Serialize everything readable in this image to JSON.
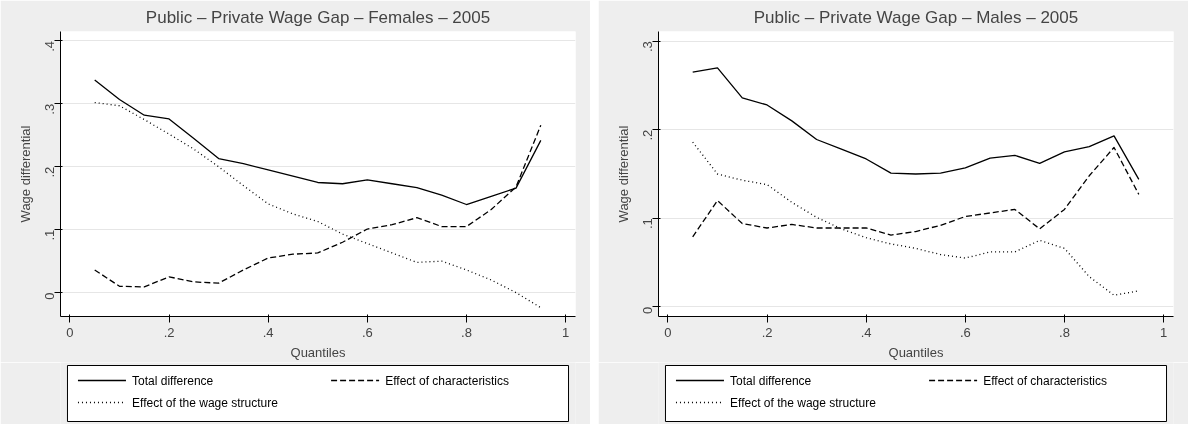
{
  "chart_data": [
    {
      "type": "line",
      "title": "Public – Private Wage Gap – Females – 2005",
      "xlabel": "Quantiles",
      "ylabel": "Wage differential",
      "x": [
        0.05,
        0.1,
        0.15,
        0.2,
        0.25,
        0.3,
        0.35,
        0.4,
        0.45,
        0.5,
        0.55,
        0.6,
        0.65,
        0.7,
        0.75,
        0.8,
        0.85,
        0.9,
        0.95
      ],
      "xlim": [
        -0.019,
        1.02
      ],
      "xticks": [
        0,
        {
          "value": 0.2,
          "label": ".2"
        },
        {
          "value": 0.4,
          "label": ".4"
        },
        {
          "value": 0.6,
          "label": ".6"
        },
        {
          "value": 0.8,
          "label": ".8"
        },
        1
      ],
      "ylim": [
        -0.038,
        0.415
      ],
      "yticks": [
        0,
        {
          "value": 0.1,
          "label": ".1"
        },
        {
          "value": 0.2,
          "label": ".2"
        },
        {
          "value": 0.3,
          "label": ".3"
        },
        {
          "value": 0.4,
          "label": ".4"
        }
      ],
      "grid": "y",
      "legend": "bottom",
      "series": [
        {
          "name": "Total difference",
          "color": "#000000",
          "line_style": "solid",
          "values": [
            0.338,
            0.307,
            0.282,
            0.276,
            0.245,
            0.213,
            0.205,
            0.195,
            0.185,
            0.175,
            0.173,
            0.179,
            0.173,
            0.167,
            0.155,
            0.14,
            0.153,
            0.166,
            0.242
          ]
        },
        {
          "name": "Effect of characteristics",
          "color": "#000000",
          "line_style": "dashed",
          "values": [
            0.036,
            0.01,
            0.009,
            0.025,
            0.017,
            0.015,
            0.036,
            0.055,
            0.061,
            0.063,
            0.08,
            0.101,
            0.108,
            0.119,
            0.105,
            0.105,
            0.132,
            0.168,
            0.266
          ]
        },
        {
          "name": "Effect of the wage structure",
          "color": "#000000",
          "line_style": "dotted",
          "values": [
            0.302,
            0.297,
            0.275,
            0.252,
            0.228,
            0.2,
            0.17,
            0.141,
            0.125,
            0.113,
            0.093,
            0.078,
            0.063,
            0.048,
            0.05,
            0.036,
            0.02,
            0.0,
            -0.024
          ]
        }
      ]
    },
    {
      "type": "line",
      "title": "Public – Private Wage Gap – Males – 2005",
      "xlabel": "Quantiles",
      "ylabel": "Wage differential",
      "x": [
        0.05,
        0.1,
        0.15,
        0.2,
        0.25,
        0.3,
        0.35,
        0.4,
        0.45,
        0.5,
        0.55,
        0.6,
        0.65,
        0.7,
        0.75,
        0.8,
        0.85,
        0.9,
        0.95
      ],
      "xlim": [
        -0.019,
        1.02
      ],
      "xticks": [
        0,
        {
          "value": 0.2,
          "label": ".2"
        },
        {
          "value": 0.4,
          "label": ".4"
        },
        {
          "value": 0.6,
          "label": ".6"
        },
        {
          "value": 0.8,
          "label": ".8"
        },
        1
      ],
      "ylim": [
        -0.011,
        0.311
      ],
      "yticks": [
        0,
        {
          "value": 0.1,
          "label": ".1"
        },
        {
          "value": 0.2,
          "label": ".2"
        },
        {
          "value": 0.3,
          "label": ".3"
        }
      ],
      "grid": "y",
      "legend": "bottom",
      "series": [
        {
          "name": "Total difference",
          "color": "#000000",
          "line_style": "solid",
          "values": [
            0.265,
            0.27,
            0.236,
            0.228,
            0.21,
            0.189,
            0.178,
            0.167,
            0.151,
            0.15,
            0.151,
            0.157,
            0.168,
            0.171,
            0.162,
            0.175,
            0.181,
            0.193,
            0.144
          ]
        },
        {
          "name": "Effect of characteristics",
          "color": "#000000",
          "line_style": "dashed",
          "values": [
            0.079,
            0.12,
            0.094,
            0.089,
            0.093,
            0.089,
            0.089,
            0.089,
            0.081,
            0.085,
            0.092,
            0.102,
            0.106,
            0.11,
            0.088,
            0.11,
            0.148,
            0.18,
            0.127
          ]
        },
        {
          "name": "Effect of the wage structure",
          "color": "#000000",
          "line_style": "dotted",
          "values": [
            0.186,
            0.15,
            0.143,
            0.138,
            0.118,
            0.101,
            0.088,
            0.078,
            0.071,
            0.066,
            0.059,
            0.055,
            0.062,
            0.062,
            0.075,
            0.066,
            0.034,
            0.013,
            0.018
          ]
        }
      ]
    }
  ]
}
